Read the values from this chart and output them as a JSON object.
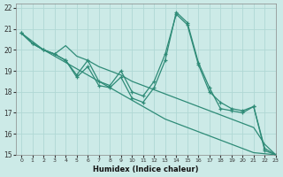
{
  "xlabel": "Humidex (Indice chaleur)",
  "ylabel": "",
  "bg_color": "#cceae7",
  "grid_color": "#b0d8d4",
  "line_color": "#2e8b77",
  "xlim": [
    -0.5,
    23
  ],
  "ylim": [
    15,
    22.2
  ],
  "xticks": [
    0,
    1,
    2,
    3,
    4,
    5,
    6,
    7,
    8,
    9,
    10,
    11,
    12,
    13,
    14,
    15,
    16,
    17,
    18,
    19,
    20,
    21,
    22,
    23
  ],
  "yticks": [
    15,
    16,
    17,
    18,
    19,
    20,
    21,
    22
  ],
  "series": [
    [
      20.8,
      20.3,
      20.0,
      19.8,
      19.5,
      18.7,
      19.2,
      18.3,
      18.2,
      18.7,
      17.7,
      17.5,
      18.2,
      19.5,
      21.8,
      21.3,
      19.4,
      18.2,
      17.2,
      17.1,
      17.0,
      17.3,
      15.2,
      15.0
    ],
    [
      20.8,
      20.3,
      20.0,
      19.8,
      19.5,
      18.8,
      19.5,
      18.5,
      18.3,
      19.0,
      18.0,
      17.8,
      18.5,
      19.8,
      21.7,
      21.2,
      19.3,
      18.0,
      17.5,
      17.2,
      17.1,
      17.3,
      15.3,
      15.0
    ],
    [
      20.8,
      20.3,
      20.0,
      19.8,
      20.2,
      19.7,
      19.5,
      19.2,
      19.0,
      18.8,
      18.5,
      18.3,
      18.1,
      17.9,
      17.7,
      17.5,
      17.3,
      17.1,
      16.9,
      16.7,
      16.5,
      16.3,
      15.5,
      15.0
    ],
    [
      20.8,
      20.4,
      20.0,
      19.7,
      19.4,
      19.1,
      18.8,
      18.5,
      18.2,
      17.9,
      17.6,
      17.3,
      17.0,
      16.7,
      16.5,
      16.3,
      16.1,
      15.9,
      15.7,
      15.5,
      15.3,
      15.1,
      15.05,
      15.0
    ]
  ]
}
